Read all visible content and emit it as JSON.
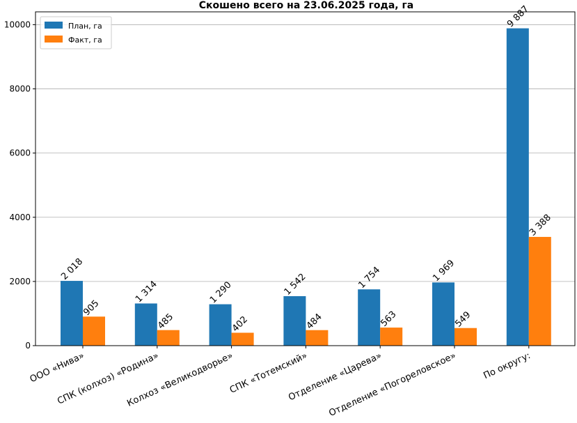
{
  "chart_data": {
    "type": "bar",
    "title": "Скошено всего на 23.06.2025 года, га",
    "xlabel": "",
    "ylabel": "",
    "ylim": [
      0,
      10400
    ],
    "yticks": [
      0,
      2000,
      4000,
      6000,
      8000,
      10000
    ],
    "grid": "horizontal",
    "legend_position": "top-left",
    "categories": [
      "ООО «Нива»",
      "СПК (колхоз) «Родина»",
      "Колхоз «Великодворье»",
      "СПК «Тотемский»",
      "Отделение «Царева»",
      "Отделение «Погореловское»",
      "По округу:"
    ],
    "series": [
      {
        "name": "План, га",
        "color": "#1f77b4",
        "values": [
          2018,
          1314,
          1290,
          1542,
          1754,
          1969,
          9887
        ],
        "labels": [
          "2 018",
          "1 314",
          "1 290",
          "1 542",
          "1 754",
          "1 969",
          "9 887"
        ]
      },
      {
        "name": "Факт, га",
        "color": "#ff7f0e",
        "values": [
          905,
          485,
          402,
          484,
          563,
          549,
          3388
        ],
        "labels": [
          "905",
          "485",
          "402",
          "484",
          "563",
          "549",
          "3 388"
        ]
      }
    ]
  }
}
